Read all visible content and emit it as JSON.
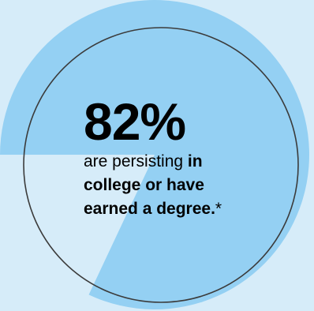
{
  "chart_data": {
    "type": "pie",
    "values": [
      82,
      18
    ],
    "colors": {
      "background": "#d6ecf9",
      "slice": "#94d0f3",
      "ring": "#3b3b3b"
    },
    "headline": "82%",
    "desc_plain": "are persisting ",
    "desc_bold_1": "in",
    "desc_bold_2": "college or have",
    "desc_bold_3": "earned a degree.",
    "footnote_mark": "*"
  }
}
